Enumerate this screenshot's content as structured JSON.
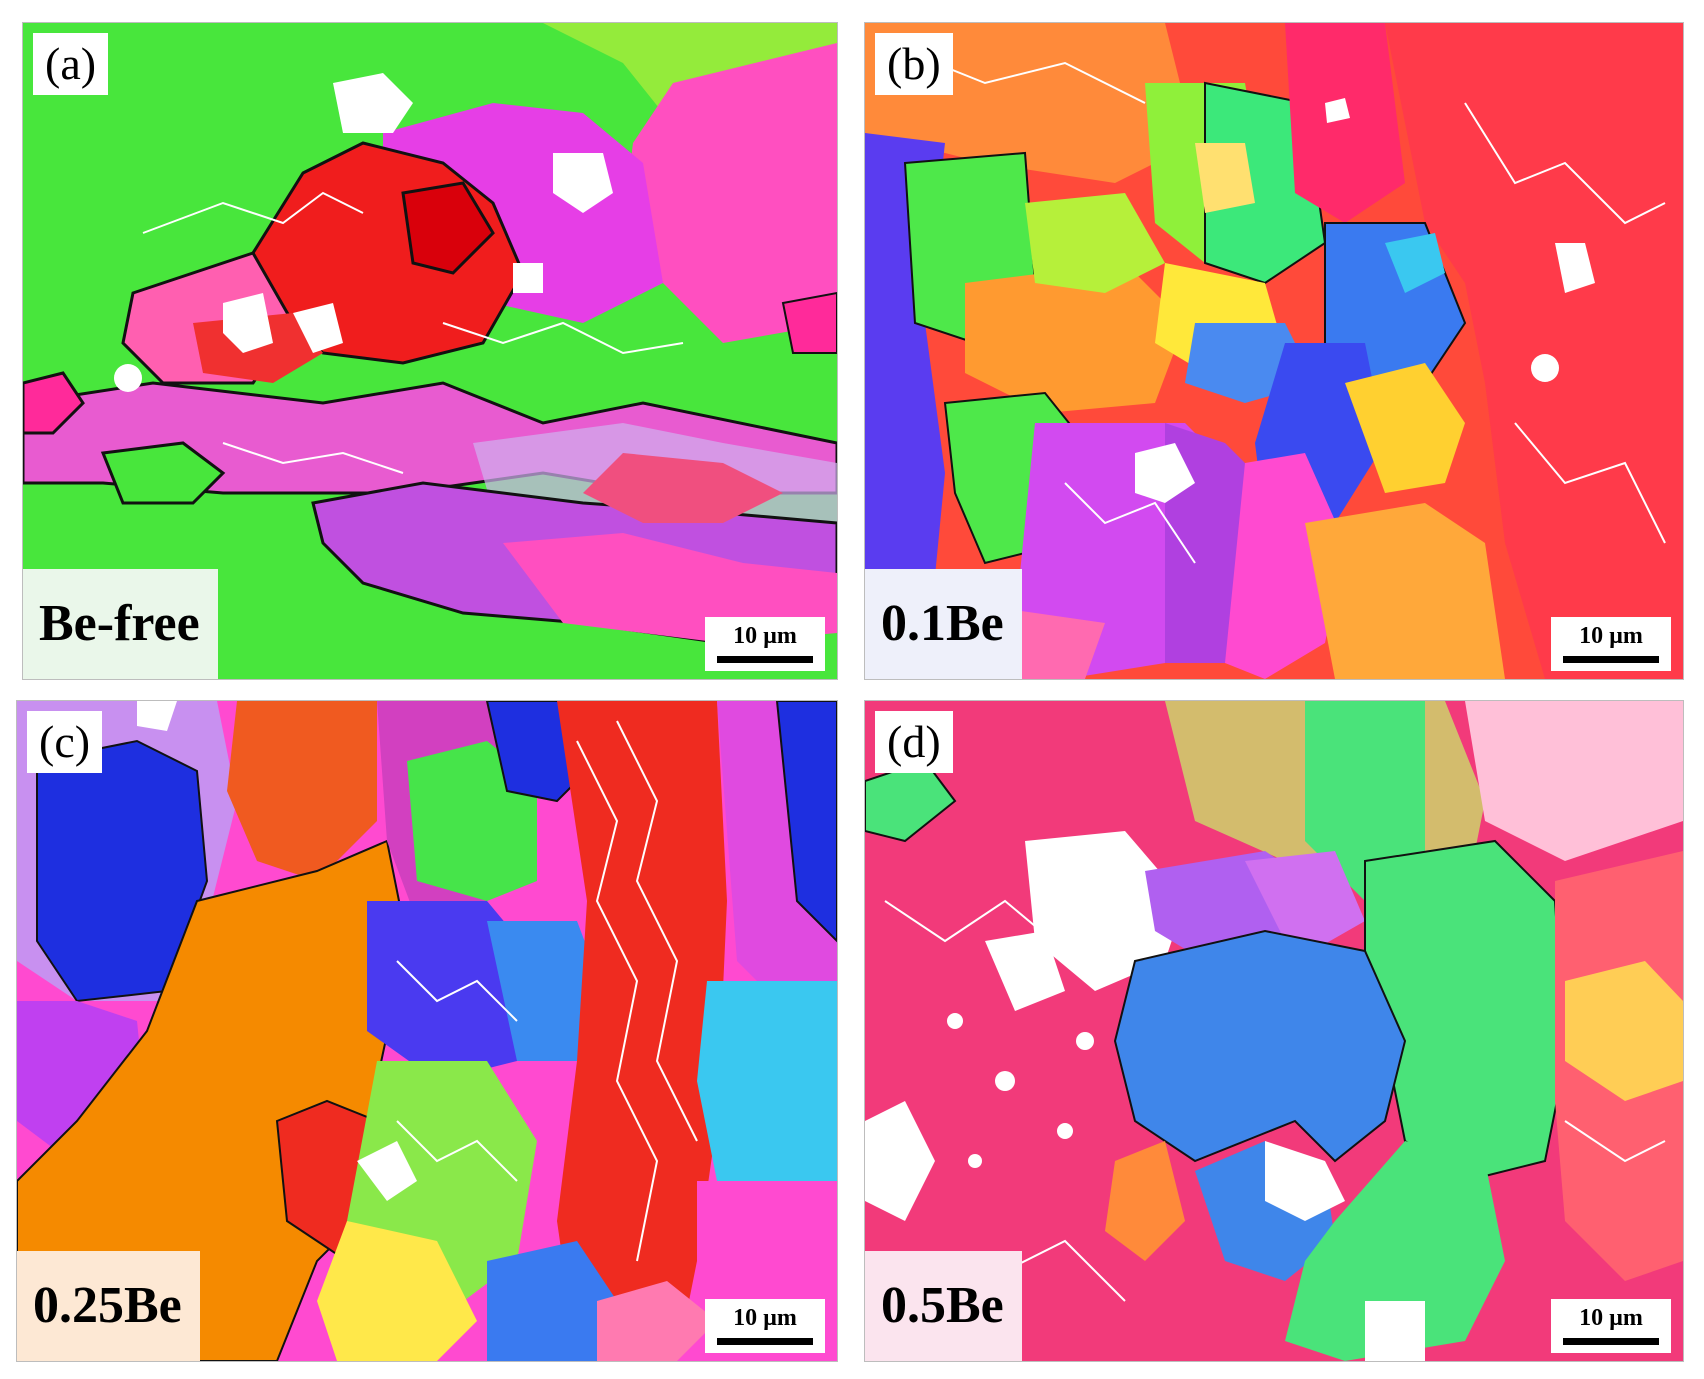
{
  "figure": {
    "panels": [
      {
        "id": "a",
        "letter": "(a)",
        "condition": "Be-free",
        "scale_label": "10 µm",
        "condition_bg": "#eaf7ea",
        "colors": [
          "#48e63c",
          "#f01d1d",
          "#e63ee6",
          "#ffffff"
        ]
      },
      {
        "id": "b",
        "letter": "(b)",
        "condition": "0.1Be",
        "scale_label": "10 µm",
        "condition_bg": "#eef0fa",
        "colors": [
          "#ff3a3a",
          "#ff8f2a",
          "#a7f23a",
          "#3a62ff",
          "#d24af0"
        ]
      },
      {
        "id": "c",
        "letter": "(c)",
        "condition": "0.25Be",
        "scale_label": "10 µm",
        "condition_bg": "#fde8d4",
        "colors": [
          "#1e2fe0",
          "#f58a00",
          "#ef2b20",
          "#46e44a",
          "#ff3fa8"
        ]
      },
      {
        "id": "d",
        "letter": "(d)",
        "condition": "0.5Be",
        "scale_label": "10 µm",
        "condition_bg": "#fbe4ee",
        "colors": [
          "#f23a7a",
          "#3f86ea",
          "#4ae37a",
          "#a8e454",
          "#ffffff"
        ]
      }
    ]
  }
}
